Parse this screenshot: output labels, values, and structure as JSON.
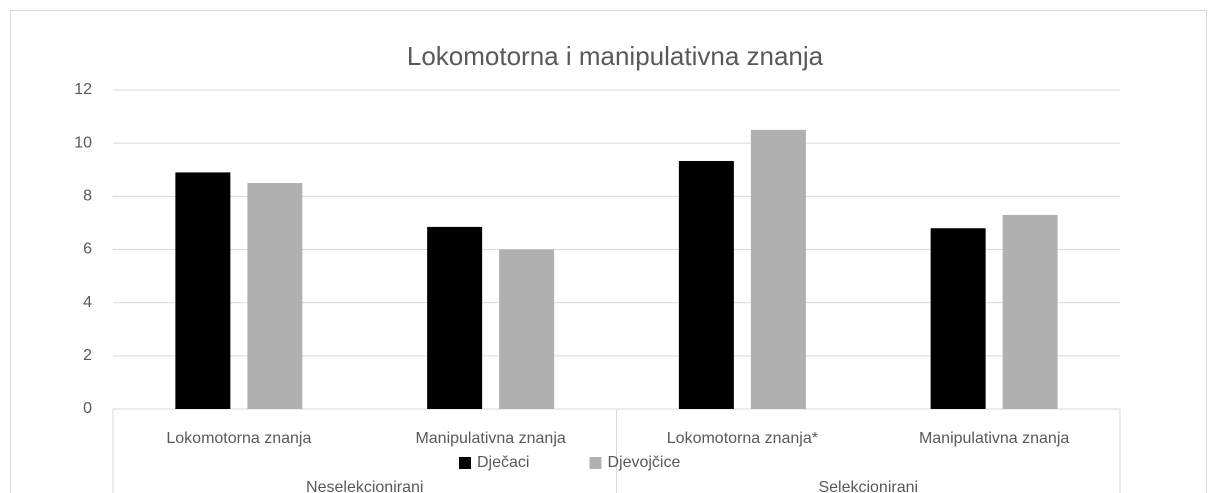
{
  "chart_data": {
    "type": "bar",
    "title": "Lokomotorna i manipulativna znanja",
    "categories": [
      "Lokomotorna znanja",
      "Manipulativna znanja",
      "Lokomotorna znanja*",
      "Manipulativna znanja"
    ],
    "group_labels": [
      "Neselekcionirani",
      "Selekcionirani"
    ],
    "series": [
      {
        "name": "Dječaci",
        "color": "#000000",
        "values": [
          8.9,
          6.85,
          9.33,
          6.8
        ]
      },
      {
        "name": "Djevojčice",
        "color": "#b0b0b0",
        "values": [
          8.5,
          6.0,
          10.5,
          7.3
        ]
      }
    ],
    "ylim": [
      0,
      12
    ],
    "yticks": [
      0,
      2,
      4,
      6,
      8,
      10,
      12
    ],
    "grid": true,
    "legend": "bottom"
  }
}
